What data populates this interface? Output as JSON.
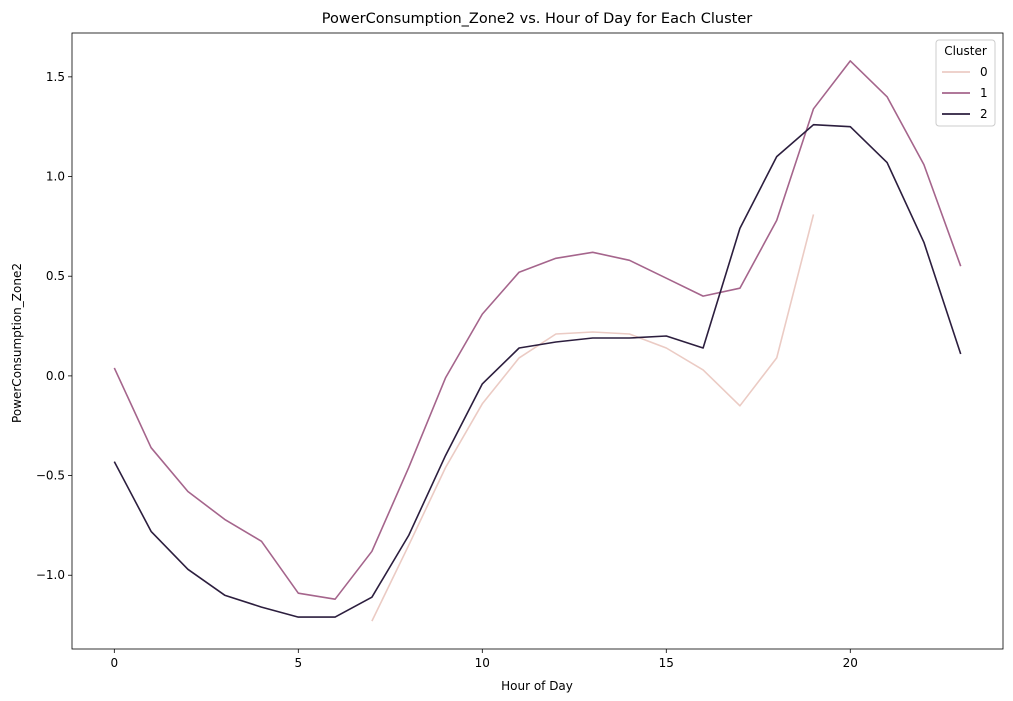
{
  "chart_data": {
    "type": "line",
    "title": "PowerConsumption_Zone2 vs. Hour of Day for Each Cluster",
    "xlabel": "Hour of Day",
    "ylabel": "PowerConsumption_Zone2",
    "xlim": [
      -1.15,
      24.15
    ],
    "ylim": [
      -1.37,
      1.72
    ],
    "xticks": [
      0,
      5,
      10,
      15,
      20
    ],
    "yticks": [
      -1.0,
      -0.5,
      0.0,
      0.5,
      1.0,
      1.5
    ],
    "ytick_labels": [
      "−1.0",
      "−0.5",
      "0.0",
      "0.5",
      "1.0",
      "1.5"
    ],
    "grid": false,
    "legend": {
      "title": "Cluster",
      "position": "top-right"
    },
    "series": [
      {
        "name": "0",
        "color": "#ebcbc4",
        "x": [
          7,
          8,
          9,
          10,
          11,
          12,
          13,
          14,
          15,
          16,
          17,
          18,
          19
        ],
        "y": [
          -1.23,
          -0.85,
          -0.46,
          -0.14,
          0.09,
          0.21,
          0.22,
          0.21,
          0.14,
          0.03,
          -0.15,
          0.09,
          0.81
        ]
      },
      {
        "name": "1",
        "color": "#a5658c",
        "x": [
          0,
          1,
          2,
          3,
          4,
          5,
          6,
          7,
          8,
          9,
          10,
          11,
          12,
          13,
          14,
          15,
          16,
          17,
          18,
          19,
          20,
          21,
          22,
          23
        ],
        "y": [
          0.04,
          -0.36,
          -0.58,
          -0.72,
          -0.83,
          -1.09,
          -1.12,
          -0.88,
          -0.46,
          -0.01,
          0.31,
          0.52,
          0.59,
          0.62,
          0.58,
          0.49,
          0.4,
          0.44,
          0.78,
          1.34,
          1.58,
          1.4,
          1.06,
          0.55
        ]
      },
      {
        "name": "2",
        "color": "#2c1e3e",
        "x": [
          0,
          1,
          2,
          3,
          4,
          5,
          6,
          7,
          8,
          9,
          10,
          11,
          12,
          13,
          14,
          15,
          16,
          17,
          18,
          19,
          20,
          21,
          22,
          23
        ],
        "y": [
          -0.43,
          -0.78,
          -0.97,
          -1.1,
          -1.16,
          -1.21,
          -1.21,
          -1.11,
          -0.8,
          -0.4,
          -0.04,
          0.14,
          0.17,
          0.19,
          0.19,
          0.2,
          0.14,
          0.74,
          1.1,
          1.26,
          1.25,
          1.07,
          0.67,
          0.11
        ]
      }
    ]
  }
}
